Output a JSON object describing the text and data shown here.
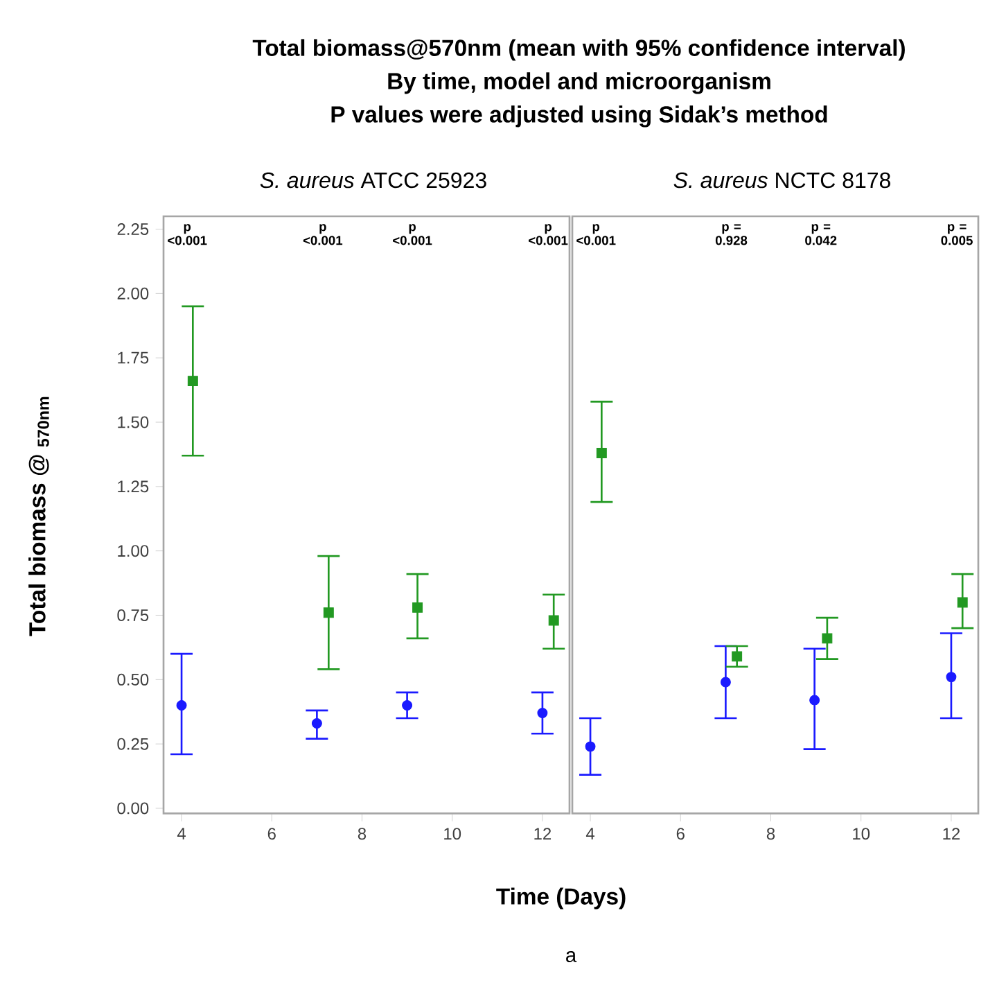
{
  "chart_data": [
    {
      "type": "scatter",
      "title": "Total biomass@570nm (mean with 95% confidence interval)",
      "subtitle": "*S. aureus* ATCC 25923",
      "xlabel": "Time (Days)",
      "ylabel": "Total biomass @ $_{570nm}$",
      "xlim": [
        3.6,
        12.6
      ],
      "xticks": [
        4,
        6,
        8,
        10,
        12
      ],
      "ylim": [
        -0.02,
        2.3
      ],
      "yticks": [
        {
          "value": 0,
          "label": "0.00"
        },
        {
          "value": 0.25,
          "label": "0.25"
        },
        {
          "value": 0.5,
          "label": "0.50"
        },
        {
          "value": 0.75,
          "label": "0.75"
        },
        {
          "value": 1,
          "label": "1.00"
        },
        {
          "value": 1.25,
          "label": "1.25"
        },
        {
          "value": 1.5,
          "label": "1.50"
        },
        {
          "value": 1.75,
          "label": "1.75"
        },
        {
          "value": 2,
          "label": "2.00"
        },
        {
          "value": 2.25,
          "label": "2.25"
        }
      ],
      "grid": false,
      "series": [
        {
          "color": "#1a1aff",
          "marker": "circle",
          "x": [
            4,
            7,
            9,
            12
          ],
          "values": [
            0.4,
            0.33,
            0.4,
            0.37
          ],
          "errors": [
            [
              0.21,
              0.6
            ],
            [
              0.27,
              0.38
            ],
            [
              0.35,
              0.45
            ],
            [
              0.29,
              0.45
            ]
          ]
        },
        {
          "color": "#229922",
          "marker": "square",
          "x": [
            4.25,
            7.26,
            9.23,
            12.25
          ],
          "values": [
            1.66,
            0.76,
            0.78,
            0.73
          ],
          "errors": [
            [
              1.37,
              1.95
            ],
            [
              0.54,
              0.98
            ],
            [
              0.66,
              0.91
            ],
            [
              0.62,
              0.83
            ]
          ]
        }
      ],
      "annotations": [
        "p <0.001",
        "p <0.001",
        "p <0.001",
        "p <0.001",
        "By time, model and microorganism",
        "P values were adjusted using Sidak’s method",
        "a"
      ]
    },
    {
      "type": "scatter",
      "subtitle": "*S. aureus* NCTC 8178",
      "tick_labels": "x",
      "xlim": [
        3.6,
        12.6
      ],
      "xticks": [
        4,
        6,
        8,
        10,
        12
      ],
      "ylim": [
        -0.02,
        2.3
      ],
      "grid": false,
      "series": [
        {
          "color": "#1a1aff",
          "marker": "circle",
          "x": [
            4,
            7,
            8.97,
            12
          ],
          "values": [
            0.24,
            0.49,
            0.42,
            0.51
          ],
          "errors": [
            [
              0.13,
              0.35
            ],
            [
              0.35,
              0.63
            ],
            [
              0.23,
              0.62
            ],
            [
              0.35,
              0.68
            ]
          ]
        },
        {
          "color": "#229922",
          "marker": "square",
          "x": [
            4.25,
            7.25,
            9.25,
            12.25
          ],
          "values": [
            1.38,
            0.59,
            0.66,
            0.8
          ],
          "errors": [
            [
              1.19,
              1.58
            ],
            [
              0.55,
              0.63
            ],
            [
              0.58,
              0.74
            ],
            [
              0.7,
              0.91
            ]
          ]
        }
      ],
      "annotations": [
        "p <0.001",
        "p = 0.928",
        "p = 0.042",
        "p = 0.005"
      ]
    }
  ]
}
